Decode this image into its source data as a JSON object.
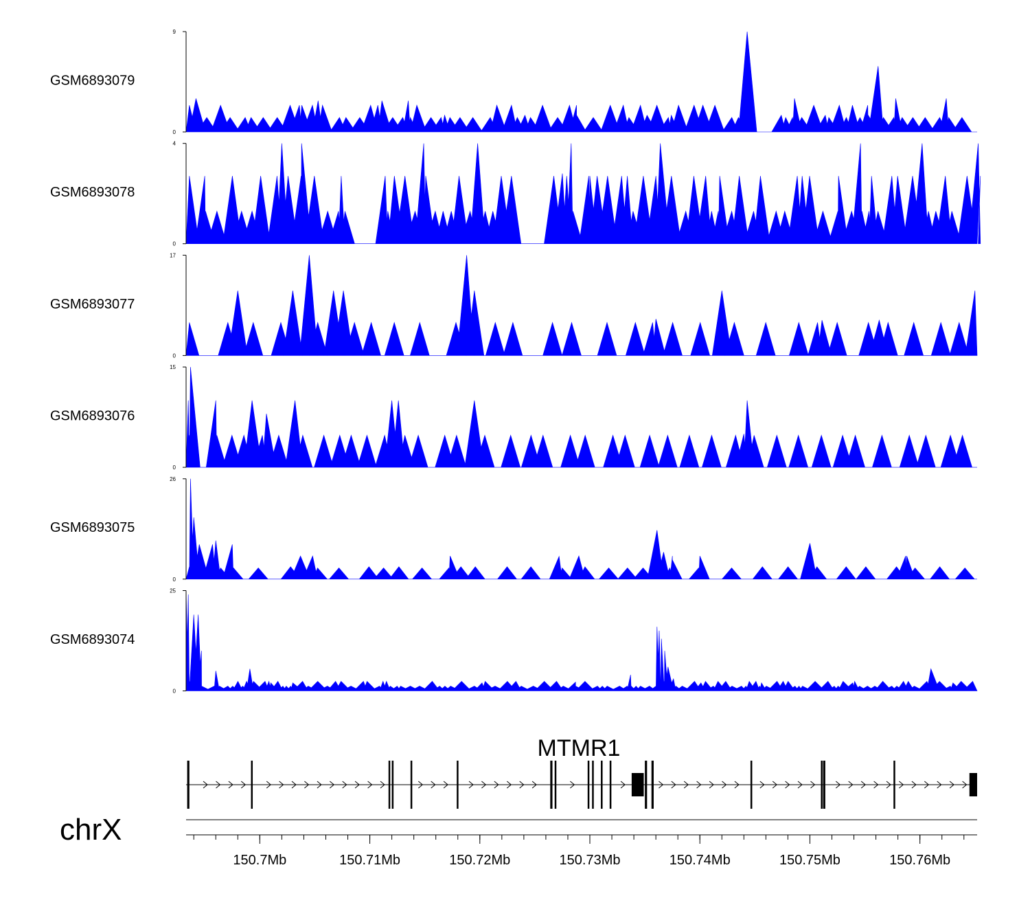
{
  "chart_data": {
    "type": "area",
    "title": "",
    "region": {
      "chromosome": "chrX",
      "start_mb": 150.6933,
      "end_mb": 150.7652
    },
    "series": [
      {
        "name": "GSM6893079",
        "ymax": 9,
        "yticks": [
          "9",
          "0"
        ],
        "color": "#0000ff",
        "peaks": [
          [
            150.6942,
            3
          ],
          [
            150.7036,
            2.4
          ],
          [
            150.7053,
            2.8
          ],
          [
            150.7111,
            2.8
          ],
          [
            150.7135,
            2.8
          ],
          [
            150.7168,
            1.5
          ],
          [
            150.7241,
            1.5
          ],
          [
            150.7288,
            1.5
          ],
          [
            150.7352,
            1.5
          ],
          [
            150.7374,
            1.5
          ],
          [
            150.7443,
            9
          ],
          [
            150.7474,
            1.5
          ],
          [
            150.7486,
            3
          ],
          [
            150.7514,
            1.5
          ],
          [
            150.7553,
            1.5
          ],
          [
            150.7562,
            5.9
          ],
          [
            150.7578,
            3
          ],
          [
            150.7624,
            3
          ]
        ],
        "baseline_peaks": [
          1.3,
          2.4
        ],
        "base_min_gap": 0.0005,
        "base_max_gap": 0.0016,
        "gap_regions": [
          [
            150.7445,
            150.747
          ]
        ]
      },
      {
        "name": "GSM6893078",
        "ymax": 4,
        "yticks": [
          "4",
          "0"
        ],
        "color": "#0000ff",
        "peaks": [
          [
            150.695,
            2.7
          ],
          [
            150.702,
            4
          ],
          [
            150.7038,
            4
          ],
          [
            150.7074,
            2.7
          ],
          [
            150.7114,
            2.7
          ],
          [
            150.7149,
            4
          ],
          [
            150.7198,
            4
          ],
          [
            150.7275,
            2.8
          ],
          [
            150.7283,
            4
          ],
          [
            150.73,
            2.7
          ],
          [
            150.7364,
            4
          ],
          [
            150.7418,
            2.7
          ],
          [
            150.7493,
            2.7
          ],
          [
            150.7526,
            2.7
          ],
          [
            150.7546,
            4
          ],
          [
            150.7556,
            2.7
          ],
          [
            150.7602,
            4
          ],
          [
            150.7653,
            4
          ],
          [
            150.7655,
            2.7
          ]
        ],
        "baseline_peaks": [
          1.3,
          2.7
        ],
        "base_min_gap": 0.0005,
        "base_max_gap": 0.0015,
        "gap_regions": [
          [
            150.7078,
            150.7102
          ],
          [
            150.723,
            150.7258
          ]
        ]
      },
      {
        "name": "GSM6893077",
        "ymax": 17,
        "yticks": [
          "17",
          "0"
        ],
        "color": "#0000ff",
        "peaks": [
          [
            150.698,
            11
          ],
          [
            150.703,
            11
          ],
          [
            150.7045,
            17
          ],
          [
            150.7067,
            11
          ],
          [
            150.7076,
            11
          ],
          [
            150.7188,
            17
          ],
          [
            150.7195,
            11
          ],
          [
            150.736,
            6.2
          ],
          [
            150.742,
            11
          ],
          [
            150.7511,
            6
          ],
          [
            150.7563,
            6
          ],
          [
            150.765,
            11
          ]
        ],
        "baseline_peaks": [
          5.6,
          5.6
        ],
        "base_min_gap": 0.0015,
        "base_max_gap": 0.0036,
        "gap_regions": []
      },
      {
        "name": "GSM6893076",
        "ymax": 15,
        "yticks": [
          "15",
          "0"
        ],
        "color": "#0000ff",
        "peaks": [
          [
            150.6937,
            15
          ],
          [
            150.6935,
            10
          ],
          [
            150.696,
            10
          ],
          [
            150.6993,
            10
          ],
          [
            150.7006,
            8
          ],
          [
            150.7032,
            10
          ],
          [
            150.712,
            10
          ],
          [
            150.7126,
            10
          ],
          [
            150.7195,
            10
          ],
          [
            150.7443,
            10
          ],
          [
            150.744,
            5
          ]
        ],
        "baseline_peaks": [
          4.8,
          4.8
        ],
        "base_min_gap": 0.001,
        "base_max_gap": 0.0026,
        "gap_regions": []
      },
      {
        "name": "GSM6893075",
        "ymax": 26,
        "yticks": [
          "26",
          "0"
        ],
        "color": "#0000ff",
        "peaks": [
          [
            150.6937,
            26
          ],
          [
            150.694,
            16
          ],
          [
            150.6945,
            9
          ],
          [
            150.6957,
            9
          ],
          [
            150.696,
            10
          ],
          [
            150.6975,
            9
          ],
          [
            150.7037,
            6
          ],
          [
            150.7048,
            6
          ],
          [
            150.7173,
            6
          ],
          [
            150.7272,
            5.9
          ],
          [
            150.729,
            6
          ],
          [
            150.7361,
            12.7
          ],
          [
            150.7367,
            7
          ],
          [
            150.7375,
            6
          ],
          [
            150.7375,
            5
          ],
          [
            150.74,
            6
          ],
          [
            150.75,
            9.3
          ],
          [
            150.7587,
            6
          ],
          [
            150.7588,
            6
          ]
        ],
        "baseline_peaks": [
          2.9,
          3.2
        ],
        "base_min_gap": 0.001,
        "base_max_gap": 0.003,
        "gap_regions": []
      },
      {
        "name": "GSM6893074",
        "ymax": 25,
        "yticks": [
          "25",
          "0"
        ],
        "color": "#0000ff",
        "peaks": [
          [
            150.6933,
            25
          ],
          [
            150.6935,
            24
          ],
          [
            150.694,
            19
          ],
          [
            150.6944,
            19
          ],
          [
            150.6947,
            10
          ],
          [
            150.696,
            5
          ],
          [
            150.6991,
            5.5
          ],
          [
            150.701,
            2
          ],
          [
            150.703,
            2
          ],
          [
            150.7202,
            2
          ],
          [
            150.7287,
            2.2
          ],
          [
            150.7337,
            4
          ],
          [
            150.7361,
            16
          ],
          [
            150.7363,
            15
          ],
          [
            150.7365,
            13
          ],
          [
            150.7368,
            10
          ],
          [
            150.7371,
            6
          ],
          [
            150.7376,
            3
          ],
          [
            150.7401,
            2
          ],
          [
            150.7456,
            2
          ],
          [
            150.7539,
            2
          ],
          [
            150.761,
            5.5
          ],
          [
            150.763,
            2
          ]
        ],
        "baseline_peaks": [
          1.2,
          2.4
        ],
        "base_min_gap": 0.0003,
        "base_max_gap": 0.0012,
        "gap_regions": []
      }
    ],
    "gene_track": {
      "gene_name": "MTMR1",
      "strand": "+",
      "tx_start": 150.6933,
      "tx_end": 150.7652,
      "exons": [
        [
          150.6934,
          150.6936
        ],
        [
          150.6992,
          150.6993
        ],
        [
          150.7117,
          150.7117
        ],
        [
          150.712,
          150.712
        ],
        [
          150.7137,
          150.7138
        ],
        [
          150.7179,
          150.718
        ],
        [
          150.7264,
          150.7266
        ],
        [
          150.7268,
          150.7269
        ],
        [
          150.7298,
          150.7299
        ],
        [
          150.7302,
          150.7303
        ],
        [
          150.731,
          150.7311
        ],
        [
          150.7318,
          150.7319
        ],
        [
          150.7338,
          150.7349
        ],
        [
          150.735,
          150.7352
        ],
        [
          150.7356,
          150.7358
        ],
        [
          150.7446,
          150.7447
        ],
        [
          150.751,
          150.7511
        ],
        [
          150.7512,
          150.7514
        ],
        [
          150.7576,
          150.7577
        ],
        [
          150.7645,
          150.7652
        ]
      ],
      "utr": [
        [
          150.7338,
          150.7349
        ],
        [
          150.7645,
          150.7652
        ]
      ]
    },
    "x_axis": {
      "chromosome_label": "chrX",
      "tick_labels": [
        "150.7Mb",
        "150.71Mb",
        "150.72Mb",
        "150.73Mb",
        "150.74Mb",
        "150.75Mb",
        "150.76Mb"
      ],
      "tick_values": [
        150.7,
        150.71,
        150.72,
        150.73,
        150.74,
        150.75,
        150.76
      ],
      "minor_tick_step_mb": 0.002
    }
  }
}
